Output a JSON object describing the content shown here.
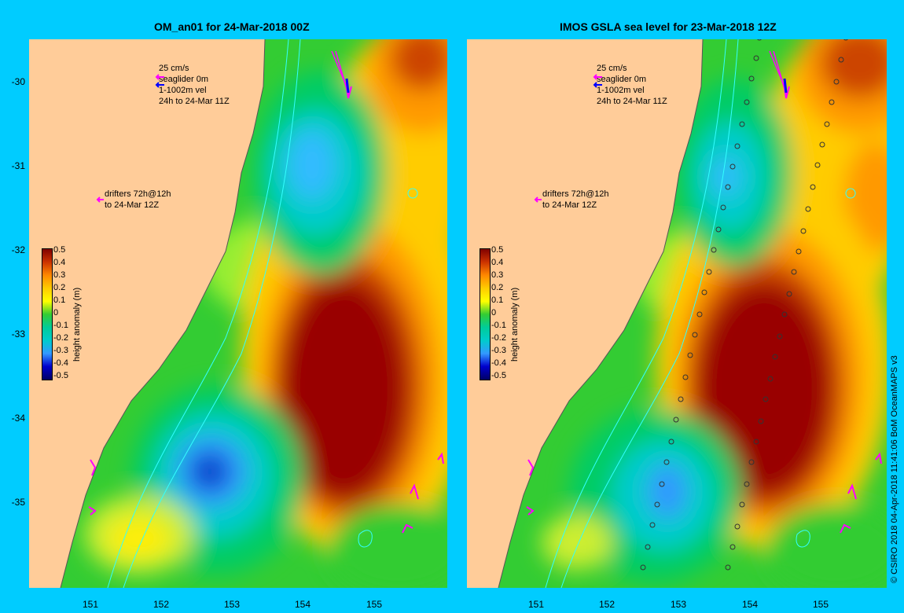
{
  "panels": [
    {
      "title": "OM_an01 for 24-Mar-2018 00Z",
      "legend": {
        "speed": "25 cm/s",
        "seaglider": "seaglider 0m",
        "vel": "1-1002m vel",
        "period": "24h to 24-Mar 11Z"
      },
      "drifters": [
        "drifters 72h@12h",
        "to 24-Mar 12Z"
      ],
      "colorbar_title": "height anomaly (m)",
      "colorbar_ticks": [
        "0.5",
        "0.4",
        "0.3",
        "0.2",
        "0.1",
        "0",
        "-0.1",
        "-0.2",
        "-0.3",
        "-0.4",
        "-0.5"
      ]
    },
    {
      "title": "IMOS GSLA sea level  for 23-Mar-2018 12Z",
      "legend": {
        "speed": "25 cm/s",
        "seaglider": "seaglider 0m",
        "vel": "1-1002m vel",
        "period": "24h to 24-Mar 11Z"
      },
      "drifters": [
        "drifters 72h@12h",
        "to 24-Mar 12Z"
      ],
      "colorbar_title": "height anomaly (m)",
      "colorbar_ticks": [
        "0.5",
        "0.4",
        "0.3",
        "0.2",
        "0.1",
        "0",
        "-0.1",
        "-0.2",
        "-0.3",
        "-0.4",
        "-0.5"
      ]
    }
  ],
  "y_ticks": [
    "-30",
    "-31",
    "-32",
    "-33",
    "-34",
    "-35"
  ],
  "x_ticks": [
    "151",
    "152",
    "153",
    "154",
    "155"
  ],
  "credit": "© CSIRO 2018   04-Apr-2018 11:41:06 BoM OceanMAPS v3",
  "colors": {
    "background": "#00ccff",
    "land": "#ffcc99",
    "vector_magenta": "#ff00ff",
    "vector_blue": "#0000ff",
    "contour": "#33ffff"
  }
}
